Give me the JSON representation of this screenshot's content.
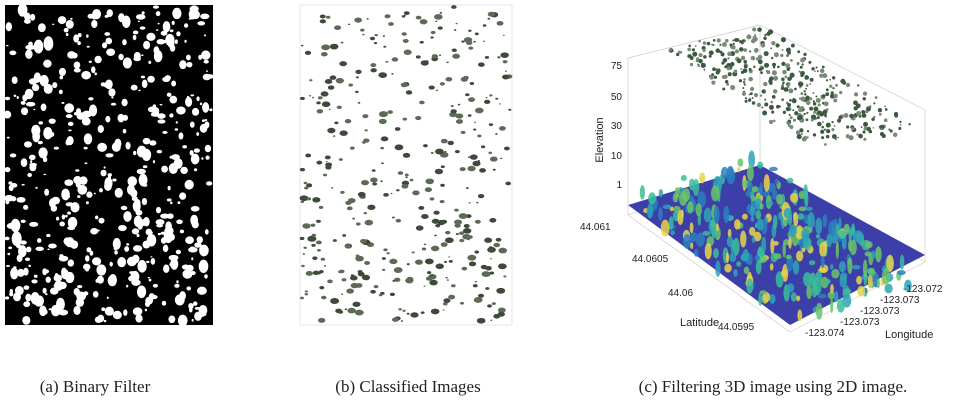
{
  "panels": [
    {
      "caption": "(a) Binary Filter"
    },
    {
      "caption": "(b) Classified Images"
    },
    {
      "caption": "(c) Filtering 3D image using 2D image.",
      "axes": {
        "z_label": "Elevation",
        "z_ticks": [
          "75",
          "50",
          "30",
          "10",
          "1"
        ],
        "y_label": "Latitude",
        "y_ticks": [
          "44.061",
          "44.0605",
          "44.06",
          "44.0595"
        ],
        "x_label": "Longitude",
        "x_ticks": [
          "-123.072",
          "-123.073",
          "-123.073",
          "-123.073",
          "-123.074"
        ]
      }
    }
  ]
}
